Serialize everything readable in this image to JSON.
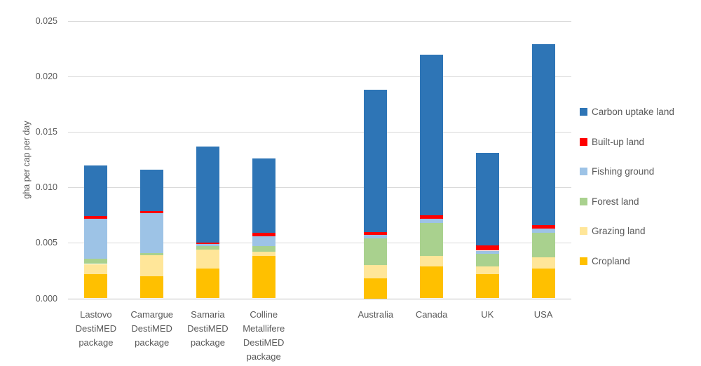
{
  "chart_data": {
    "type": "stacked-bar",
    "title": "",
    "ylabel": "gha per cap per day",
    "ylim": [
      0,
      0.025
    ],
    "grid": true,
    "yticks": {
      "values": [
        0,
        0.005,
        0.01,
        0.015,
        0.02,
        0.025
      ],
      "labels": [
        "0.000",
        "0.005",
        "0.010",
        "0.015",
        "0.020",
        "0.025"
      ]
    },
    "categories": [
      {
        "label": "Lastovo DestiMED package",
        "lines": [
          "Lastovo",
          "DestiMED",
          "package"
        ]
      },
      {
        "label": "Camargue DestiMED package",
        "lines": [
          "Camargue",
          "DestiMED",
          "package"
        ]
      },
      {
        "label": "Samaria DestiMED package",
        "lines": [
          "Samaria",
          "DestiMED",
          "package"
        ]
      },
      {
        "label": "Colline Metallifere DestiMED package",
        "lines": [
          "Colline",
          "Metallifere",
          "DestiMED",
          "package"
        ]
      },
      {
        "label": "Australia",
        "lines": [
          "Australia"
        ]
      },
      {
        "label": "Canada",
        "lines": [
          "Canada"
        ]
      },
      {
        "label": "UK",
        "lines": [
          "UK"
        ]
      },
      {
        "label": "USA",
        "lines": [
          "USA"
        ]
      }
    ],
    "group_gap_after_index": 3,
    "series_stack_order": "bottom_to_top",
    "series": [
      {
        "name": "Cropland",
        "color": "#FFC000",
        "values": [
          0.0022,
          0.002,
          0.0027,
          0.0038,
          0.0018,
          0.0029,
          0.0022,
          0.0027
        ]
      },
      {
        "name": "Grazing land",
        "color": "#FFE699",
        "values": [
          0.0009,
          0.0019,
          0.0017,
          0.0004,
          0.0012,
          0.0009,
          0.0007,
          0.001
        ]
      },
      {
        "name": "Forest land",
        "color": "#A9D18E",
        "values": [
          0.0005,
          0.0002,
          0.0003,
          0.0005,
          0.0024,
          0.003,
          0.0011,
          0.0022
        ]
      },
      {
        "name": "Fishing ground",
        "color": "#9DC3E6",
        "values": [
          0.0036,
          0.0036,
          0.0002,
          0.0009,
          0.0003,
          0.0004,
          0.0003,
          0.0004
        ]
      },
      {
        "name": "Built-up land",
        "color": "#FF0000",
        "values": [
          0.0002,
          0.0002,
          0.0001,
          0.0003,
          0.0003,
          0.0003,
          0.0005,
          0.0003
        ]
      },
      {
        "name": "Carbon uptake land",
        "color": "#2E75B6",
        "values": [
          0.0046,
          0.0037,
          0.0087,
          0.0067,
          0.0128,
          0.0145,
          0.0083,
          0.0163
        ]
      }
    ],
    "totals": [
      0.012,
      0.0116,
      0.0137,
      0.0126,
      0.0188,
      0.022,
      0.0131,
      0.0229
    ],
    "legend": {
      "position": "right",
      "order_top_to_bottom": [
        "Carbon uptake land",
        "Built-up land",
        "Fishing ground",
        "Forest land",
        "Grazing land",
        "Cropland"
      ]
    },
    "colors": {
      "gridline": "#D9D9D9",
      "axis_line": "#BFBFBF",
      "text": "#595959",
      "background": "#FFFFFF"
    }
  }
}
